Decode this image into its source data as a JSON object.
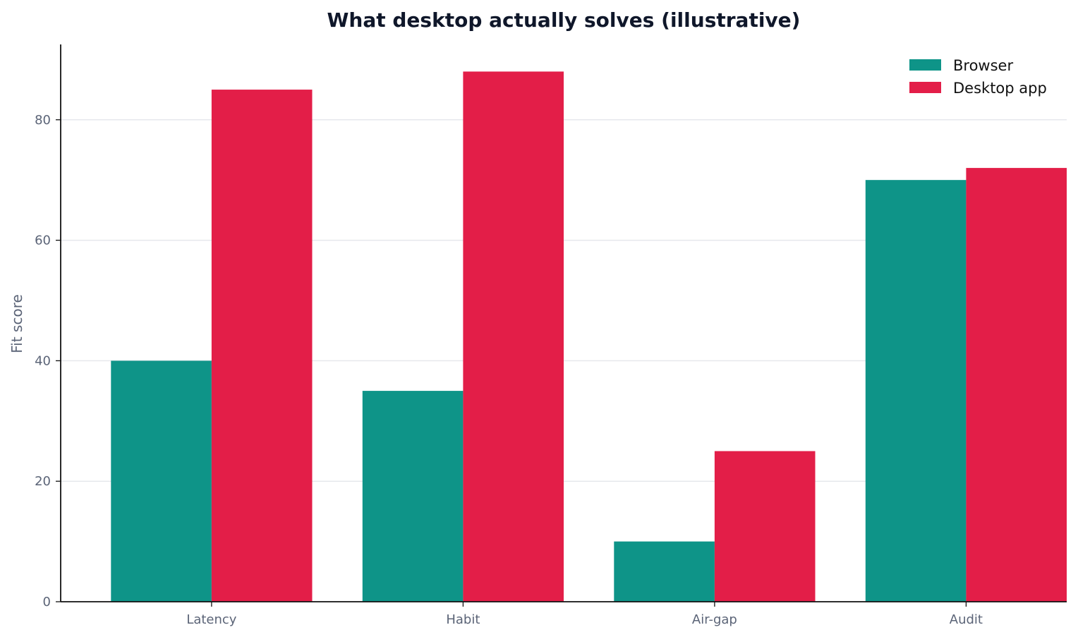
{
  "chart_data": {
    "type": "bar",
    "title": "What desktop actually solves (illustrative)",
    "xlabel": "",
    "ylabel": "Fit score",
    "categories": [
      "Latency",
      "Habit",
      "Air-gap",
      "Audit"
    ],
    "series": [
      {
        "name": "Browser",
        "color": "#0e9488",
        "values": [
          40,
          35,
          10,
          70
        ]
      },
      {
        "name": "Desktop app",
        "color": "#e31e48",
        "values": [
          85,
          88,
          25,
          72
        ]
      }
    ],
    "ylim": [
      0,
      92.5
    ],
    "yticks": [
      0,
      20,
      40,
      60,
      80
    ],
    "grid": true,
    "legend": "top-right"
  }
}
